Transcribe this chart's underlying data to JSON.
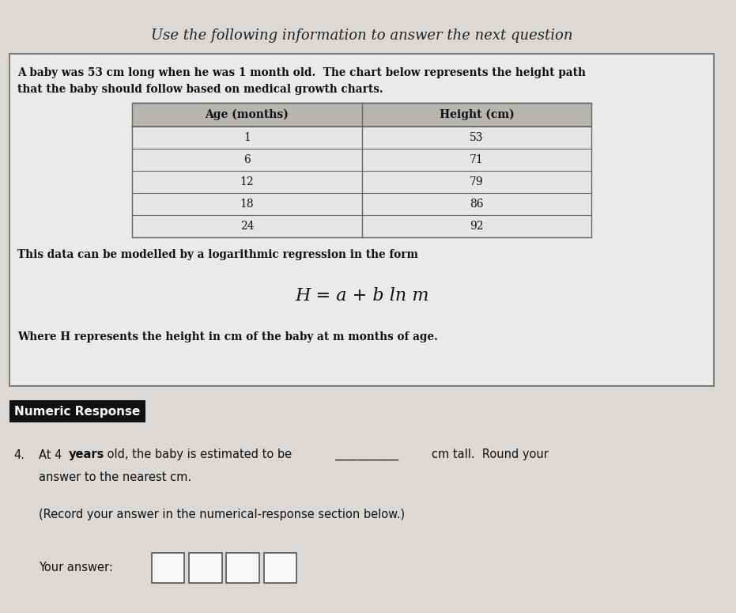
{
  "title": "Use the following information to answer the next question",
  "intro_text_line1": "A baby was 53 cm long when he was 1 month old.  The chart below represents the height path",
  "intro_text_line2": "that the baby should follow based on medical growth charts.",
  "table_headers": [
    "Age (months)",
    "Height (cm)"
  ],
  "table_data": [
    [
      "1",
      "53"
    ],
    [
      "6",
      "71"
    ],
    [
      "12",
      "79"
    ],
    [
      "18",
      "86"
    ],
    [
      "24",
      "92"
    ]
  ],
  "model_text": "This data can be modelled by a logarithmic regression in the form",
  "formula": "H = a + b ln m",
  "where_text": "Where H represents the height in cm of the baby at m months of age.",
  "numeric_response_label": "Numeric Response",
  "question_number": "4.",
  "record_text": "(Record your answer in the numerical-response section below.)",
  "your_answer_label": "Your answer:",
  "bg_color": "#dcd8d5",
  "box_bg": "#eceae8",
  "table_header_bg": "#b8b4b0",
  "table_row_bg": "#e8e6e4",
  "numeric_label_bg": "#111111",
  "numeric_label_fg": "#ffffff",
  "border_color": "#666666"
}
